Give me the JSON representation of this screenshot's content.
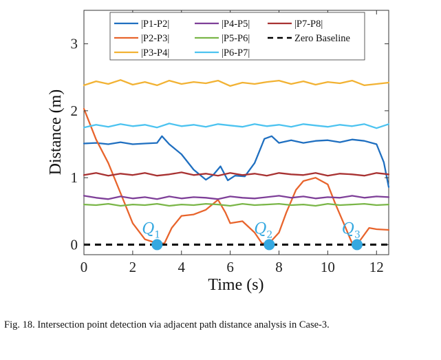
{
  "caption": "Fig. 18.  Intersection point detection via adjacent path distance analysis in Case-3.",
  "chart_data": {
    "type": "line",
    "title": "",
    "xlabel": "Time (s)",
    "ylabel": "Distance (m)",
    "xlim": [
      0,
      12.5
    ],
    "ylim": [
      -0.15,
      3.5
    ],
    "xticks": [
      0,
      2,
      4,
      6,
      8,
      10,
      12
    ],
    "yticks": [
      0,
      1,
      2,
      3
    ],
    "grid": false,
    "legend_position": "top",
    "series": [
      {
        "name": "|P1-P2|",
        "color": "#1f6fc0",
        "style": "solid",
        "x": [
          0,
          0.5,
          1,
          1.5,
          2,
          2.5,
          3,
          3.2,
          3.5,
          4,
          4.5,
          5,
          5.3,
          5.6,
          5.9,
          6.2,
          6.6,
          7,
          7.4,
          7.7,
          8,
          8.5,
          9,
          9.5,
          10,
          10.5,
          11,
          11.5,
          12,
          12.3,
          12.5
        ],
        "y": [
          1.51,
          1.52,
          1.5,
          1.53,
          1.5,
          1.51,
          1.52,
          1.62,
          1.5,
          1.35,
          1.12,
          0.97,
          1.04,
          1.17,
          0.96,
          1.03,
          1.02,
          1.22,
          1.58,
          1.62,
          1.52,
          1.56,
          1.52,
          1.55,
          1.56,
          1.53,
          1.57,
          1.55,
          1.5,
          1.23,
          0.86
        ]
      },
      {
        "name": "|P2-P3|",
        "color": "#e8642c",
        "style": "solid",
        "x": [
          0,
          0.5,
          1,
          1.5,
          2,
          2.5,
          3,
          3.3,
          3.6,
          4,
          4.5,
          5,
          5.5,
          5.8,
          6,
          6.5,
          7,
          7.3,
          7.6,
          8,
          8.3,
          8.7,
          9,
          9.5,
          10,
          10.3,
          10.7,
          11,
          11.3,
          11.7,
          12,
          12.5
        ],
        "y": [
          2.03,
          1.57,
          1.22,
          0.77,
          0.32,
          0.08,
          0.02,
          0.02,
          0.25,
          0.43,
          0.45,
          0.52,
          0.67,
          0.48,
          0.32,
          0.35,
          0.18,
          0.02,
          0.02,
          0.18,
          0.48,
          0.82,
          0.95,
          1.0,
          0.9,
          0.62,
          0.28,
          0.02,
          0.05,
          0.25,
          0.23,
          0.22
        ]
      },
      {
        "name": "|P3-P4|",
        "color": "#f2b233",
        "style": "solid",
        "x": [
          0,
          0.5,
          1,
          1.5,
          2,
          2.5,
          3,
          3.5,
          4,
          4.5,
          5,
          5.5,
          6,
          6.5,
          7,
          7.5,
          8,
          8.5,
          9,
          9.5,
          10,
          10.5,
          11,
          11.5,
          12,
          12.5
        ],
        "y": [
          2.38,
          2.44,
          2.4,
          2.46,
          2.39,
          2.43,
          2.38,
          2.45,
          2.4,
          2.43,
          2.41,
          2.45,
          2.37,
          2.42,
          2.4,
          2.43,
          2.45,
          2.4,
          2.44,
          2.39,
          2.43,
          2.41,
          2.45,
          2.38,
          2.4,
          2.42
        ]
      },
      {
        "name": "|P4-P5|",
        "color": "#7e3f98",
        "style": "solid",
        "x": [
          0,
          0.5,
          1,
          1.5,
          2,
          2.5,
          3,
          3.5,
          4,
          4.5,
          5,
          5.5,
          6,
          6.5,
          7,
          7.5,
          8,
          8.5,
          9,
          9.5,
          10,
          10.5,
          11,
          11.5,
          12,
          12.5
        ],
        "y": [
          0.73,
          0.7,
          0.68,
          0.72,
          0.69,
          0.71,
          0.68,
          0.72,
          0.69,
          0.71,
          0.7,
          0.68,
          0.72,
          0.7,
          0.69,
          0.71,
          0.73,
          0.7,
          0.72,
          0.69,
          0.71,
          0.7,
          0.73,
          0.7,
          0.72,
          0.71
        ]
      },
      {
        "name": "|P5-P6|",
        "color": "#7ab648",
        "style": "solid",
        "x": [
          0,
          0.5,
          1,
          1.5,
          2,
          2.5,
          3,
          3.5,
          4,
          4.5,
          5,
          5.5,
          6,
          6.5,
          7,
          7.5,
          8,
          8.5,
          9,
          9.5,
          10,
          10.5,
          11,
          11.5,
          12,
          12.5
        ],
        "y": [
          0.6,
          0.59,
          0.61,
          0.58,
          0.6,
          0.59,
          0.61,
          0.58,
          0.6,
          0.59,
          0.61,
          0.6,
          0.58,
          0.61,
          0.59,
          0.6,
          0.61,
          0.59,
          0.6,
          0.58,
          0.61,
          0.59,
          0.6,
          0.61,
          0.59,
          0.6
        ]
      },
      {
        "name": "|P6-P7|",
        "color": "#4cc3f0",
        "style": "solid",
        "x": [
          0,
          0.5,
          1,
          1.5,
          2,
          2.5,
          3,
          3.5,
          4,
          4.5,
          5,
          5.5,
          6,
          6.5,
          7,
          7.5,
          8,
          8.5,
          9,
          9.5,
          10,
          10.5,
          11,
          11.5,
          12,
          12.5
        ],
        "y": [
          1.75,
          1.79,
          1.76,
          1.8,
          1.77,
          1.79,
          1.75,
          1.81,
          1.77,
          1.79,
          1.76,
          1.8,
          1.78,
          1.76,
          1.8,
          1.77,
          1.79,
          1.76,
          1.8,
          1.78,
          1.76,
          1.79,
          1.77,
          1.8,
          1.74,
          1.8
        ]
      },
      {
        "name": "|P7-P8|",
        "color": "#a83232",
        "style": "solid",
        "x": [
          0,
          0.5,
          1,
          1.5,
          2,
          2.5,
          3,
          3.5,
          4,
          4.5,
          5,
          5.5,
          6,
          6.5,
          7,
          7.5,
          8,
          8.5,
          9,
          9.5,
          10,
          10.5,
          11,
          11.5,
          12,
          12.5
        ],
        "y": [
          1.04,
          1.07,
          1.03,
          1.06,
          1.04,
          1.07,
          1.03,
          1.05,
          1.08,
          1.04,
          1.06,
          1.03,
          1.07,
          1.04,
          1.06,
          1.03,
          1.07,
          1.05,
          1.04,
          1.07,
          1.03,
          1.06,
          1.05,
          1.03,
          1.07,
          1.05
        ]
      },
      {
        "name": "Zero Baseline",
        "color": "#000000",
        "style": "dashed",
        "x": [
          0,
          12.5
        ],
        "y": [
          0,
          0
        ]
      }
    ],
    "intersection_points": [
      {
        "label": "Q",
        "sub": "1",
        "x": 3.0,
        "y": 0
      },
      {
        "label": "Q",
        "sub": "2",
        "x": 7.6,
        "y": 0
      },
      {
        "label": "Q",
        "sub": "3",
        "x": 11.2,
        "y": 0
      }
    ]
  }
}
